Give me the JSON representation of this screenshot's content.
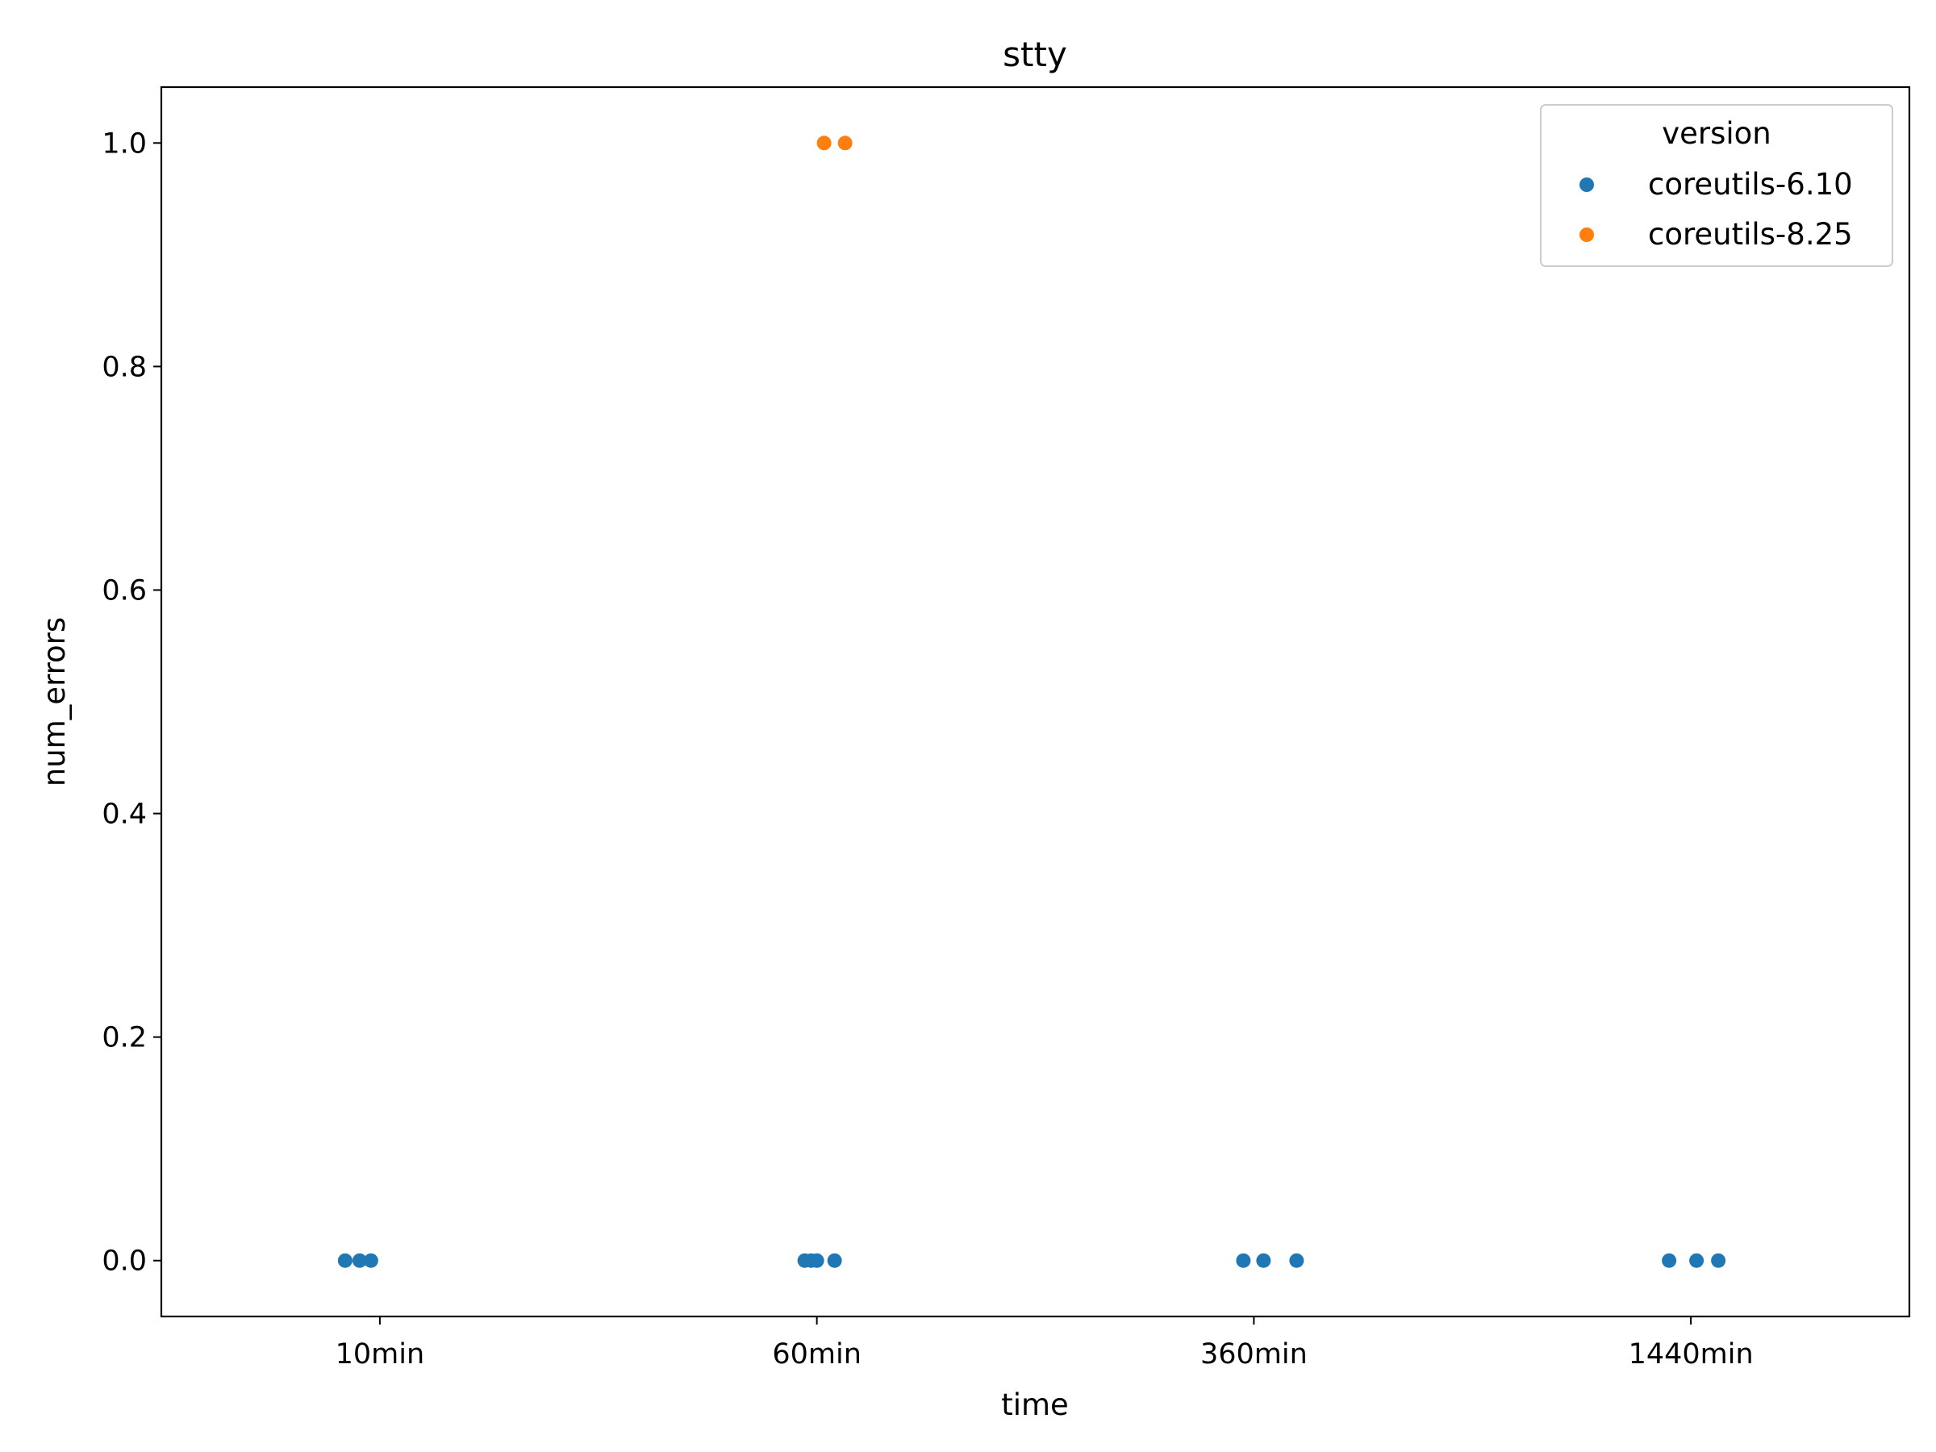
{
  "chart_data": {
    "type": "scatter",
    "title": "stty",
    "xlabel": "time",
    "ylabel": "num_errors",
    "categories": [
      "10min",
      "60min",
      "360min",
      "1440min"
    ],
    "ylim": [
      -0.05,
      1.05
    ],
    "yticks": [
      "0.0",
      "0.2",
      "0.4",
      "0.6",
      "0.8",
      "1.0"
    ],
    "grid": false,
    "legend": {
      "title": "version",
      "placement": "top-right"
    },
    "series": [
      {
        "name": "coreutils-6.10",
        "color": "#1f77b4",
        "points": [
          {
            "x": "10min",
            "y": 0
          },
          {
            "x": "10min",
            "y": 0
          },
          {
            "x": "10min",
            "y": 0
          },
          {
            "x": "60min",
            "y": 0
          },
          {
            "x": "60min",
            "y": 0
          },
          {
            "x": "60min",
            "y": 0
          },
          {
            "x": "60min",
            "y": 0
          },
          {
            "x": "360min",
            "y": 0
          },
          {
            "x": "360min",
            "y": 0
          },
          {
            "x": "360min",
            "y": 0
          },
          {
            "x": "1440min",
            "y": 0
          },
          {
            "x": "1440min",
            "y": 0
          },
          {
            "x": "1440min",
            "y": 0
          }
        ]
      },
      {
        "name": "coreutils-8.25",
        "color": "#ff7f0e",
        "points": [
          {
            "x": "60min",
            "y": 1
          },
          {
            "x": "60min",
            "y": 1
          }
        ]
      }
    ]
  }
}
